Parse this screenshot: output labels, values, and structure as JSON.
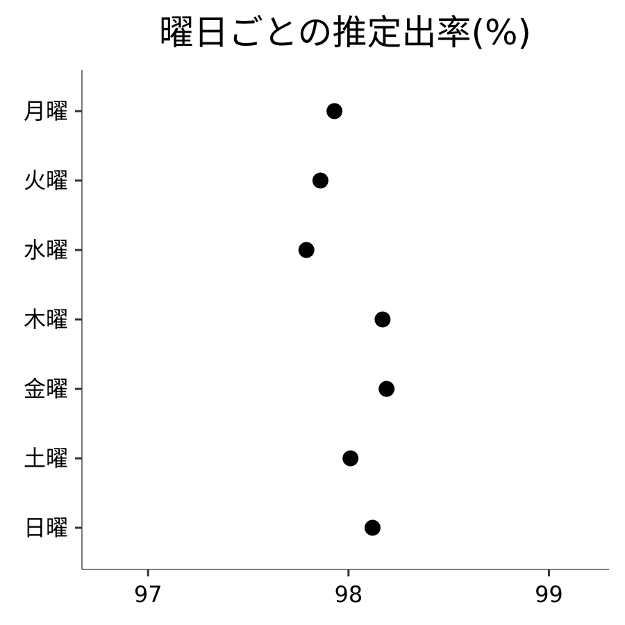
{
  "chart_data": {
    "type": "scatter",
    "title": "曜日ごとの推定出率(%)",
    "xlabel": "",
    "ylabel": "",
    "categories": [
      "月曜",
      "火曜",
      "水曜",
      "木曜",
      "金曜",
      "土曜",
      "日曜"
    ],
    "values": [
      97.93,
      97.86,
      97.79,
      98.17,
      98.19,
      98.01,
      98.12
    ],
    "xlim": [
      96.67,
      99.3
    ],
    "xticks": [
      97,
      98,
      99
    ],
    "xtick_labels": [
      "97",
      "98",
      "99"
    ],
    "grid": false,
    "legend": "none",
    "point_color": "#000000"
  }
}
